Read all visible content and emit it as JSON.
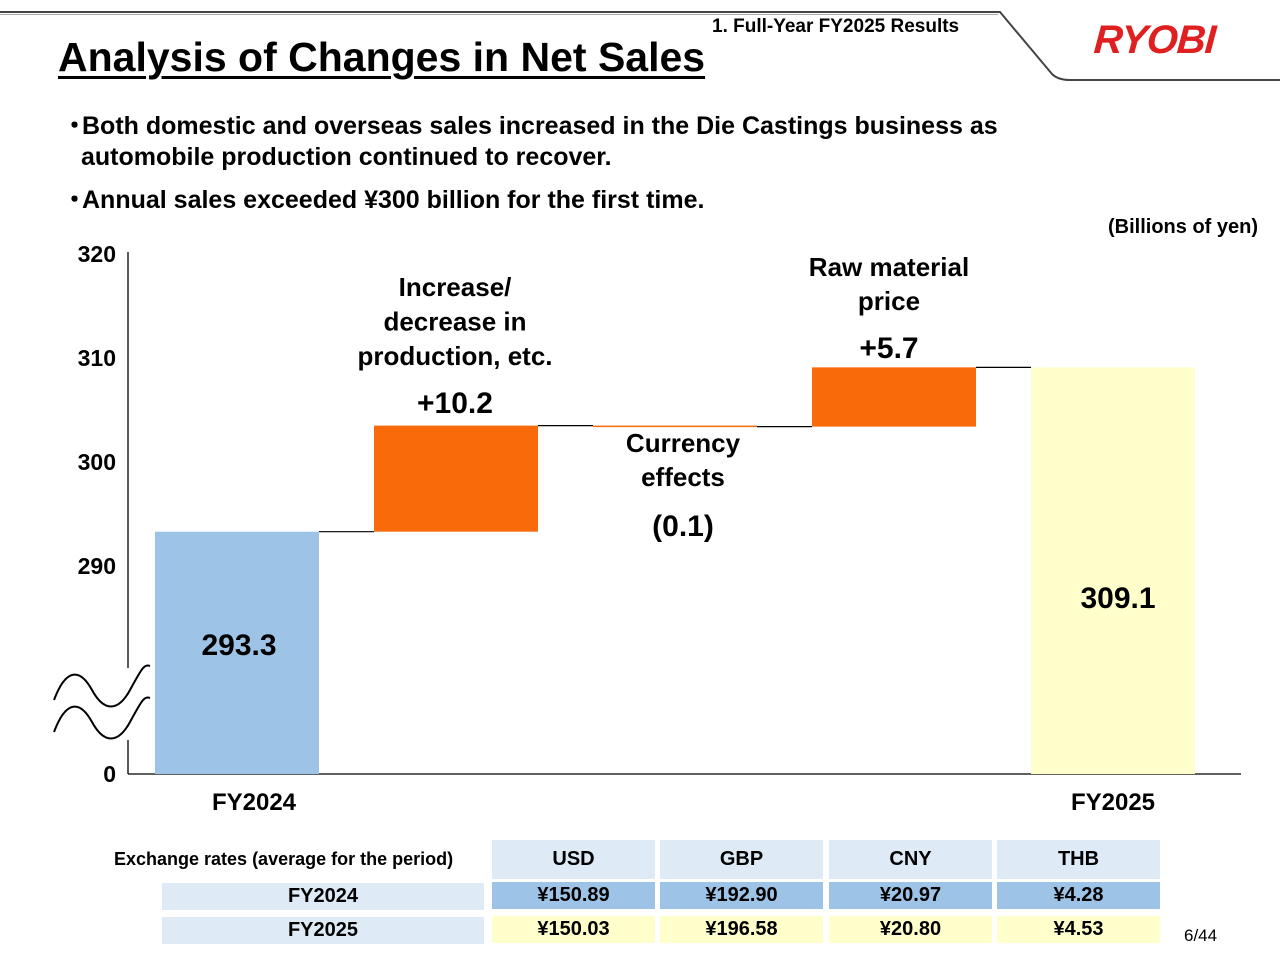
{
  "header": {
    "section_label": "1. Full-Year FY2025 Results",
    "title": "Analysis of Changes in Net Sales",
    "logo_text": "RYOBI",
    "logo_color": "#e02020"
  },
  "bullets": {
    "b1_line1": "Both domestic and overseas sales increased in the Die Castings business as",
    "b1_line2": "automobile production continued to recover.",
    "b2": "Annual sales exceeded ¥300 billion for the first time.",
    "marker": "・"
  },
  "unit_label": "(Billions of yen)",
  "chart_data": {
    "type": "waterfall",
    "title": "",
    "ylabel": "",
    "xlabel": "",
    "ylim": [
      0,
      320
    ],
    "axis_break": true,
    "visible_range": [
      285,
      320
    ],
    "y_ticks": [
      {
        "value": 320,
        "label": "320"
      },
      {
        "value": 310,
        "label": "310"
      },
      {
        "value": 300,
        "label": "300"
      },
      {
        "value": 290,
        "label": "290"
      },
      {
        "value": 0,
        "label": "0"
      }
    ],
    "steps": [
      {
        "label": "FY2024",
        "kind": "total",
        "value": 293.3,
        "value_label": "293.3",
        "color": "#9dc3e6"
      },
      {
        "label": "Increase/\ndecrease in\nproduction, etc.",
        "kind": "delta",
        "value": 10.2,
        "value_label": "+10.2",
        "color": "#f96b0a"
      },
      {
        "label": "Currency\neffects",
        "kind": "delta",
        "value": -0.1,
        "value_label": "(0.1)",
        "color": "#f96b0a"
      },
      {
        "label": "Raw material\nprice",
        "kind": "delta",
        "value": 5.7,
        "value_label": "+5.7",
        "color": "#f96b0a"
      },
      {
        "label": "FY2025",
        "kind": "total",
        "value": 309.1,
        "value_label": "309.1",
        "color": "#ffffcc"
      }
    ]
  },
  "fx_table": {
    "title": "Exchange rates (average for the period)",
    "columns": [
      "USD",
      "GBP",
      "CNY",
      "THB"
    ],
    "rows": [
      {
        "label": "FY2024",
        "values": [
          "¥150.89",
          "¥192.90",
          "¥20.97",
          "¥4.28"
        ]
      },
      {
        "label": "FY2025",
        "values": [
          "¥150.03",
          "¥196.58",
          "¥20.80",
          "¥4.53"
        ]
      }
    ]
  },
  "page_number": "6/44"
}
